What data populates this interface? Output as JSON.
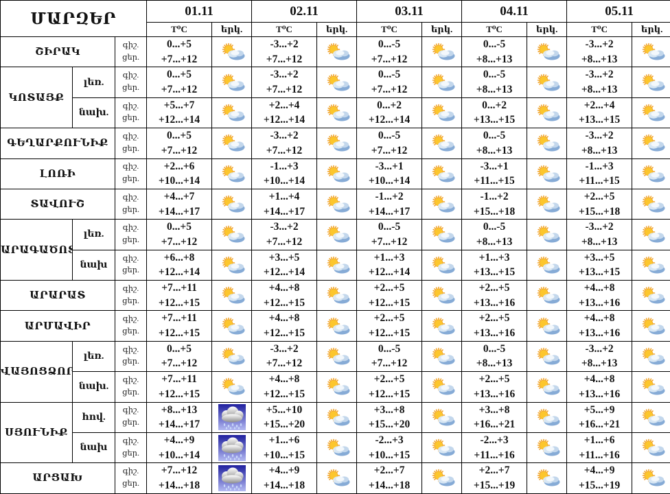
{
  "title": "ՄԱՐԶԵՐ",
  "dates": [
    "01.11",
    "02.11",
    "03.11",
    "04.11",
    "05.11"
  ],
  "temp_header": "T⁰C",
  "sky_header": "երկ.",
  "night_label": "գիշ.",
  "day_label": "ցեր.",
  "icons": {
    "partly": "sun-cloud-icon",
    "rain": "rain-cloud-icon"
  },
  "groups": [
    {
      "region": "ՇԻՐԱԿ",
      "rows": [
        {
          "sub": null,
          "cells": [
            [
              "0...+5",
              "+7...+12",
              "partly"
            ],
            [
              "-3...+2",
              "+7...+12",
              "partly"
            ],
            [
              "0...-5",
              "+7...+12",
              "partly"
            ],
            [
              "0...-5",
              "+8...+13",
              "partly"
            ],
            [
              "-3...+2",
              "+8...+13",
              "partly"
            ]
          ]
        }
      ]
    },
    {
      "region": "ԿՈՏԱՅՔ",
      "rows": [
        {
          "sub": "լեռ.",
          "cells": [
            [
              "0...+5",
              "+7...+12",
              "partly"
            ],
            [
              "-3...+2",
              "+7...+12",
              "partly"
            ],
            [
              "0...-5",
              "+7...+12",
              "partly"
            ],
            [
              "0...-5",
              "+8...+13",
              "partly"
            ],
            [
              "-3...+2",
              "+8...+13",
              "partly"
            ]
          ]
        },
        {
          "sub": "նախ.",
          "cells": [
            [
              "+5...+7",
              "+12...+14",
              "partly"
            ],
            [
              "+2...+4",
              "+12...+14",
              "partly"
            ],
            [
              "0...+2",
              "+12...+14",
              "partly"
            ],
            [
              "0...+2",
              "+13...+15",
              "partly"
            ],
            [
              "+2...+4",
              "+13...+15",
              "partly"
            ]
          ]
        }
      ]
    },
    {
      "region": "ԳԵՂԱՐՔՈՒՆԻՔ",
      "rows": [
        {
          "sub": null,
          "cells": [
            [
              "0...+5",
              "+7...+12",
              "partly"
            ],
            [
              "-3...+2",
              "+7...+12",
              "partly"
            ],
            [
              "0...-5",
              "+7...+12",
              "partly"
            ],
            [
              "0...-5",
              "+8...+13",
              "partly"
            ],
            [
              "-3...+2",
              "+8...+13",
              "partly"
            ]
          ]
        }
      ]
    },
    {
      "region": "ԼՈՌԻ",
      "rows": [
        {
          "sub": null,
          "cells": [
            [
              "+2...+6",
              "+10...+14",
              "partly"
            ],
            [
              "-1...+3",
              "+10...+14",
              "partly"
            ],
            [
              "-3...+1",
              "+10...+14",
              "partly"
            ],
            [
              "-3...+1",
              "+11...+15",
              "partly"
            ],
            [
              "-1...+3",
              "+11...+15",
              "partly"
            ]
          ]
        }
      ]
    },
    {
      "region": "ՏԱՎՈՒՇ",
      "rows": [
        {
          "sub": null,
          "cells": [
            [
              "+4...+7",
              "+14...+17",
              "partly"
            ],
            [
              "+1...+4",
              "+14...+17",
              "partly"
            ],
            [
              "-1...+2",
              "+14...+17",
              "partly"
            ],
            [
              "-1...+2",
              "+15...+18",
              "partly"
            ],
            [
              "+2...+5",
              "+15...+18",
              "partly"
            ]
          ]
        }
      ]
    },
    {
      "region": "ԱՐԱԳԱԾՈՏՆ",
      "rows": [
        {
          "sub": "լեռ.",
          "cells": [
            [
              "0...+5",
              "+7...+12",
              "partly"
            ],
            [
              "-3...+2",
              "+7...+12",
              "partly"
            ],
            [
              "0...-5",
              "+7...+12",
              "partly"
            ],
            [
              "0...-5",
              "+8...+13",
              "partly"
            ],
            [
              "-3...+2",
              "+8...+13",
              "partly"
            ]
          ]
        },
        {
          "sub": "նախ",
          "cells": [
            [
              "+6...+8",
              "+12...+14",
              "partly"
            ],
            [
              "+3...+5",
              "+12...+14",
              "partly"
            ],
            [
              "+1...+3",
              "+12...+14",
              "partly"
            ],
            [
              "+1...+3",
              "+13...+15",
              "partly"
            ],
            [
              "+3...+5",
              "+13...+15",
              "partly"
            ]
          ]
        }
      ]
    },
    {
      "region": "ԱՐԱՐԱՏ",
      "rows": [
        {
          "sub": null,
          "cells": [
            [
              "+7...+11",
              "+12...+15",
              "partly"
            ],
            [
              "+4...+8",
              "+12...+15",
              "partly"
            ],
            [
              "+2...+5",
              "+12...+15",
              "partly"
            ],
            [
              "+2...+5",
              "+13...+16",
              "partly"
            ],
            [
              "+4...+8",
              "+13...+16",
              "partly"
            ]
          ]
        }
      ]
    },
    {
      "region": "ԱՐՄԱՎԻՐ",
      "rows": [
        {
          "sub": null,
          "cells": [
            [
              "+7...+11",
              "+12...+15",
              "partly"
            ],
            [
              "+4...+8",
              "+12...+15",
              "partly"
            ],
            [
              "+2...+5",
              "+12...+15",
              "partly"
            ],
            [
              "+2...+5",
              "+13...+16",
              "partly"
            ],
            [
              "+4...+8",
              "+13...+16",
              "partly"
            ]
          ]
        }
      ]
    },
    {
      "region": "ՎԱՅՈՑՁՈՐ",
      "rows": [
        {
          "sub": "լեռ.",
          "cells": [
            [
              "0...+5",
              "+7...+12",
              "partly"
            ],
            [
              "-3...+2",
              "+7...+12",
              "partly"
            ],
            [
              "0...-5",
              "+7...+12",
              "partly"
            ],
            [
              "0...-5",
              "+8...+13",
              "partly"
            ],
            [
              "-3...+2",
              "+8...+13",
              "partly"
            ]
          ]
        },
        {
          "sub": "նախ.",
          "cells": [
            [
              "+7...+11",
              "+12...+15",
              "partly"
            ],
            [
              "+4...+8",
              "+12...+15",
              "partly"
            ],
            [
              "+2...+5",
              "+12...+15",
              "partly"
            ],
            [
              "+2...+5",
              "+13...+16",
              "partly"
            ],
            [
              "+4...+8",
              "+13...+16",
              "partly"
            ]
          ]
        }
      ]
    },
    {
      "region": "ՍՅՈՒՆԻՔ",
      "rows": [
        {
          "sub": "հով.",
          "cells": [
            [
              "+8...+13",
              "+14...+17",
              "rain"
            ],
            [
              "+5...+10",
              "+15...+20",
              "partly"
            ],
            [
              "+3...+8",
              "+15...+20",
              "partly"
            ],
            [
              "+3...+8",
              "+16...+21",
              "partly"
            ],
            [
              "+5...+9",
              "+16...+21",
              "partly"
            ]
          ]
        },
        {
          "sub": "նախ",
          "cells": [
            [
              "+4...+9",
              "+10...+14",
              "rain"
            ],
            [
              "+1...+6",
              "+10...+15",
              "partly"
            ],
            [
              "-2...+3",
              "+10...+15",
              "partly"
            ],
            [
              "-2...+3",
              "+11...+16",
              "partly"
            ],
            [
              "+1...+6",
              "+11...+16",
              "partly"
            ]
          ]
        }
      ]
    },
    {
      "region": "ԱՐՑԱԽ",
      "rows": [
        {
          "sub": null,
          "cells": [
            [
              "+7...+12",
              "+14...+18",
              "rain"
            ],
            [
              "+4...+9",
              "+14...+18",
              "partly"
            ],
            [
              "+2...+7",
              "+14...+18",
              "partly"
            ],
            [
              "+2...+7",
              "+15...+19",
              "partly"
            ],
            [
              "+4...+9",
              "+15...+19",
              "partly"
            ]
          ]
        }
      ]
    }
  ]
}
